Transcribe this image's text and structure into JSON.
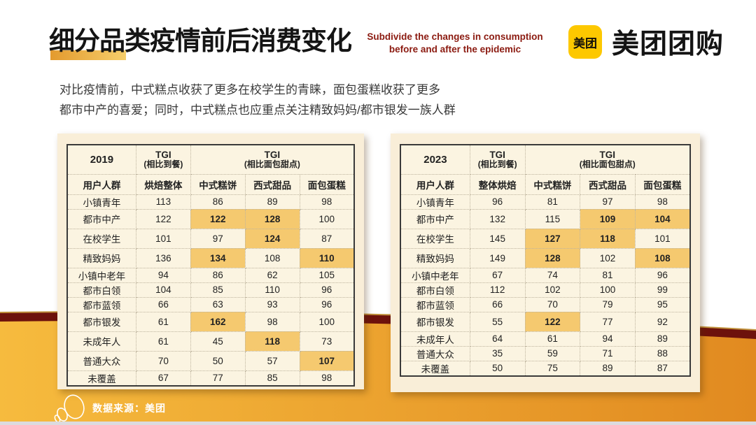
{
  "header": {
    "title": "细分品类疫情前后消费变化",
    "subtitle_line1": "Subdivide the changes in consumption",
    "subtitle_line2": "before and after the epidemic",
    "logo_badge": "美团",
    "logo_text": "美团团购"
  },
  "intro": {
    "line1": "对比疫情前，中式糕点收获了更多在校学生的青睐，面包蛋糕收获了更多",
    "line2": "都市中产的喜爱；同时，中式糕点也应重点关注精致妈妈/都市银发一族人群"
  },
  "tables": [
    {
      "year": "2019",
      "group_header": "用户人群",
      "tgi_vs_dining": {
        "title": "TGI",
        "subtitle": "(相比到餐)"
      },
      "tgi_vs_bakery": {
        "title": "TGI",
        "subtitle": "(相比面包甜点)"
      },
      "categories": [
        "烘焙整体",
        "中式糕饼",
        "西式甜品",
        "面包蛋糕"
      ],
      "rows": [
        {
          "label": "小镇青年",
          "values": [
            113,
            86,
            89,
            98
          ],
          "highlight": []
        },
        {
          "label": "都市中产",
          "values": [
            122,
            122,
            128,
            100
          ],
          "highlight": [
            1,
            2
          ]
        },
        {
          "label": "在校学生",
          "values": [
            101,
            97,
            124,
            87
          ],
          "highlight": [
            2
          ]
        },
        {
          "label": "精致妈妈",
          "values": [
            136,
            134,
            108,
            110
          ],
          "highlight": [
            1,
            3
          ]
        },
        {
          "label": "小镇中老年",
          "values": [
            94,
            86,
            62,
            105
          ],
          "highlight": []
        },
        {
          "label": "都市白领",
          "values": [
            104,
            85,
            110,
            96
          ],
          "highlight": []
        },
        {
          "label": "都市蓝领",
          "values": [
            66,
            63,
            93,
            96
          ],
          "highlight": []
        },
        {
          "label": "都市银发",
          "values": [
            61,
            162,
            98,
            100
          ],
          "highlight": [
            1
          ]
        },
        {
          "label": "未成年人",
          "values": [
            61,
            45,
            118,
            73
          ],
          "highlight": [
            2
          ]
        },
        {
          "label": "普通大众",
          "values": [
            70,
            50,
            57,
            107
          ],
          "highlight": [
            3
          ]
        },
        {
          "label": "未覆盖",
          "values": [
            67,
            77,
            85,
            98
          ],
          "highlight": []
        }
      ]
    },
    {
      "year": "2023",
      "group_header": "用户人群",
      "tgi_vs_dining": {
        "title": "TGI",
        "subtitle": "(相比到餐)"
      },
      "tgi_vs_bakery": {
        "title": "TGI",
        "subtitle": "(相比面包甜点)"
      },
      "categories": [
        "整体烘焙",
        "中式糕饼",
        "西式甜品",
        "面包蛋糕"
      ],
      "rows": [
        {
          "label": "小镇青年",
          "values": [
            96,
            81,
            97,
            98
          ],
          "highlight": []
        },
        {
          "label": "都市中产",
          "values": [
            132,
            115,
            109,
            104
          ],
          "highlight": [
            2,
            3
          ]
        },
        {
          "label": "在校学生",
          "values": [
            145,
            127,
            118,
            101
          ],
          "highlight": [
            1,
            2
          ]
        },
        {
          "label": "精致妈妈",
          "values": [
            149,
            128,
            102,
            108
          ],
          "highlight": [
            1,
            3
          ]
        },
        {
          "label": "小镇中老年",
          "values": [
            67,
            74,
            81,
            96
          ],
          "highlight": []
        },
        {
          "label": "都市白领",
          "values": [
            112,
            102,
            100,
            99
          ],
          "highlight": []
        },
        {
          "label": "都市蓝领",
          "values": [
            66,
            70,
            79,
            95
          ],
          "highlight": []
        },
        {
          "label": "都市银发",
          "values": [
            55,
            122,
            77,
            92
          ],
          "highlight": [
            1
          ]
        },
        {
          "label": "未成年人",
          "values": [
            64,
            61,
            94,
            89
          ],
          "highlight": []
        },
        {
          "label": "普通大众",
          "values": [
            35,
            59,
            71,
            88
          ],
          "highlight": []
        },
        {
          "label": "未覆盖",
          "values": [
            50,
            75,
            89,
            87
          ],
          "highlight": []
        }
      ]
    }
  ],
  "footer": {
    "source": "数据来源：美团"
  },
  "colors": {
    "brand_yellow": "#FDC800",
    "subtitle_red": "#8B1A10",
    "panel_cream": "#F9EED8",
    "cell_cream": "#FBF4E1",
    "highlight_cell": "#F5C96F",
    "wave_maroon": "#6D120C",
    "wave_orange_left": "#F6BB3E",
    "wave_orange_right": "#E18A20",
    "title_highlight_from": "#E39A2E",
    "title_highlight_to": "#F6CE6B"
  }
}
